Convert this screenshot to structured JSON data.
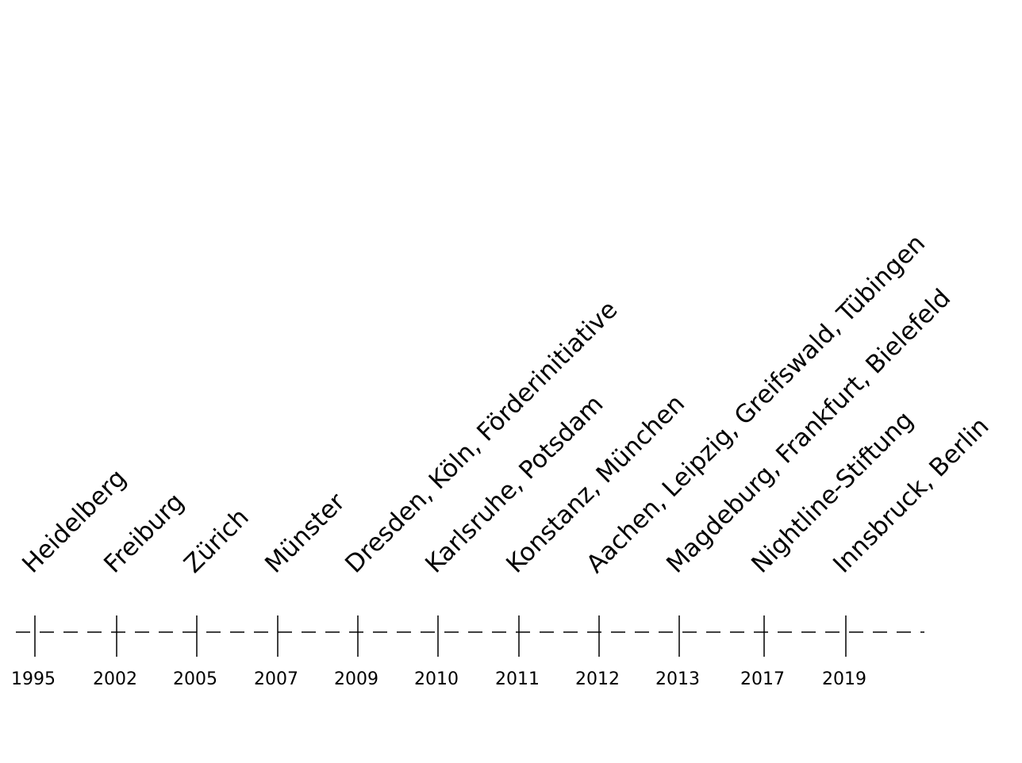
{
  "timeline": {
    "colors": {
      "line": "#000000",
      "text": "#000000",
      "background": "#ffffff"
    },
    "entries": [
      {
        "year": "1995",
        "label": "Heidelberg"
      },
      {
        "year": "2002",
        "label": "Freiburg"
      },
      {
        "year": "2005",
        "label": "Zürich"
      },
      {
        "year": "2007",
        "label": "Münster"
      },
      {
        "year": "2009",
        "label": "Dresden, Köln, Förderinitiative"
      },
      {
        "year": "2010",
        "label": "Karlsruhe, Potsdam"
      },
      {
        "year": "2011",
        "label": "Konstanz, München"
      },
      {
        "year": "2012",
        "label": "Aachen, Leipzig, Greifswald, Tübingen"
      },
      {
        "year": "2013",
        "label": "Magdeburg, Frankfurt, Bielefeld"
      },
      {
        "year": "2017",
        "label": "Nightline-Stiftung"
      },
      {
        "year": "2019",
        "label": "Innsbruck, Berlin"
      }
    ]
  }
}
